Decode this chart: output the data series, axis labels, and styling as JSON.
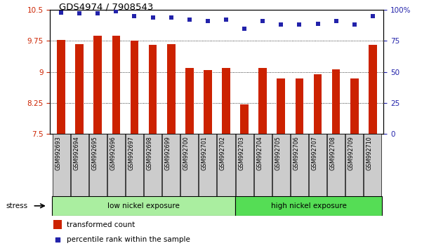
{
  "title": "GDS4974 / 7908543",
  "samples": [
    "GSM992693",
    "GSM992694",
    "GSM992695",
    "GSM992696",
    "GSM992697",
    "GSM992698",
    "GSM992699",
    "GSM992700",
    "GSM992701",
    "GSM992702",
    "GSM992703",
    "GSM992704",
    "GSM992705",
    "GSM992706",
    "GSM992707",
    "GSM992708",
    "GSM992709",
    "GSM992710"
  ],
  "bar_values": [
    9.78,
    9.68,
    9.87,
    9.88,
    9.75,
    9.66,
    9.68,
    9.1,
    9.05,
    9.1,
    8.22,
    9.1,
    8.85,
    8.85,
    8.95,
    9.06,
    8.85,
    9.65
  ],
  "percentile_values": [
    98,
    97,
    97,
    99,
    95,
    94,
    94,
    92,
    91,
    92,
    85,
    91,
    88,
    88,
    89,
    91,
    88,
    95
  ],
  "bar_color": "#CC2200",
  "dot_color": "#2222AA",
  "ylim_left": [
    7.5,
    10.5
  ],
  "ylim_right": [
    0,
    100
  ],
  "yticks_left": [
    7.5,
    8.25,
    9.0,
    9.75,
    10.5
  ],
  "ytick_labels_left": [
    "7.5",
    "8.25",
    "9",
    "9.75",
    "10.5"
  ],
  "yticks_right": [
    0,
    25,
    50,
    75,
    100
  ],
  "ytick_labels_right": [
    "0",
    "25",
    "50",
    "75",
    "100%"
  ],
  "group1_label": "low nickel exposure",
  "group2_label": "high nickel exposure",
  "group1_count": 10,
  "stress_label": "stress",
  "legend_bar": "transformed count",
  "legend_dot": "percentile rank within the sample",
  "bg_group1": "#AAEEA0",
  "bg_group2": "#55DD55",
  "left_tick_color": "#CC2200",
  "right_tick_color": "#2222AA",
  "xtick_bg": "#CCCCCC"
}
